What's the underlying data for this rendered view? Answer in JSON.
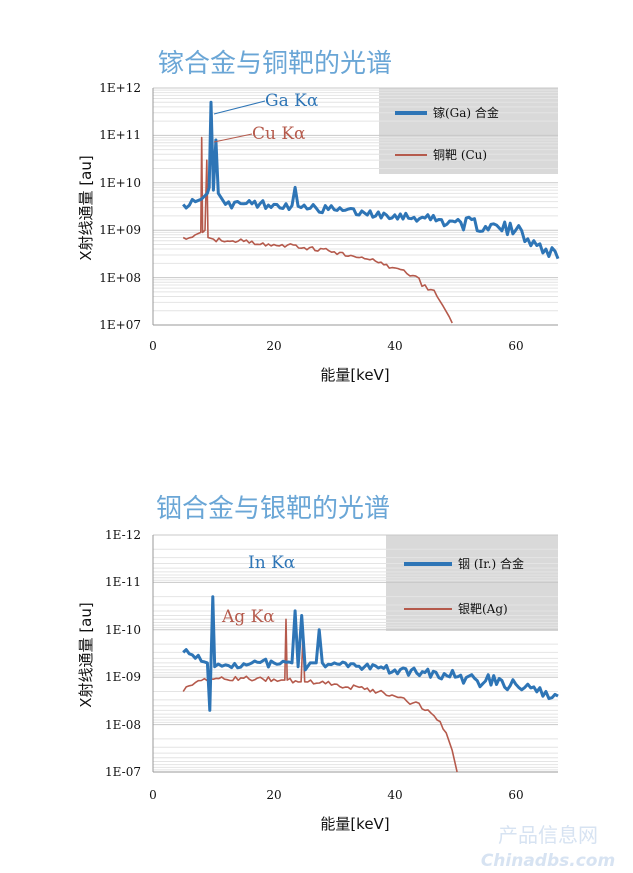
{
  "chart_data": [
    {
      "type": "line",
      "title": "镓合金与铜靶的光谱",
      "xlabel": "能量[keV]",
      "ylabel": "X射线通量 [au]",
      "xlim": [
        0,
        67
      ],
      "ylim": [
        10000000.0,
        1000000000000.0
      ],
      "y_scale": "log",
      "x_ticks": [
        "0",
        "20",
        "40",
        "60"
      ],
      "y_ticks": [
        "1E+07",
        "1E+08",
        "1E+09",
        "1E+10",
        "1E+11",
        "1E+12"
      ],
      "grid": "horizontal",
      "legend_position": "top-right",
      "series": [
        {
          "name": "镓(Ga) 合金",
          "color": "#2e75b6",
          "x": [
            5,
            7,
            8,
            9,
            9.3,
            9.6,
            10,
            10.4,
            10.8,
            12,
            15,
            20,
            23,
            23.5,
            24,
            24.5,
            26,
            30,
            35,
            40,
            45,
            50,
            55,
            60,
            63,
            65,
            67
          ],
          "y": [
            3500000000.0,
            4000000000.0,
            4500000000.0,
            6000000000.0,
            8000000000.0,
            500000000000.0,
            7000000000.0,
            80000000000.0,
            6000000000.0,
            3500000000.0,
            3600000000.0,
            3500000000.0,
            3300000000.0,
            8000000000.0,
            3200000000.0,
            3000000000.0,
            2900000000.0,
            2700000000.0,
            2300000000.0,
            2100000000.0,
            1800000000.0,
            1500000000.0,
            1200000000.0,
            1000000000.0,
            600000000.0,
            400000000.0,
            250000000.0
          ]
        },
        {
          "name": "铜靶 (Cu)",
          "color": "#b55a4c",
          "x": [
            5,
            7,
            7.9,
            8.05,
            8.2,
            8.6,
            8.9,
            9.1,
            10,
            15,
            20,
            25,
            30,
            35,
            40,
            43,
            45,
            47,
            48,
            49,
            49.5
          ],
          "y": [
            700000000.0,
            800000000.0,
            900000000.0,
            90000000000.0,
            900000000.0,
            1000000000.0,
            30000000000.0,
            700000000.0,
            650000000.0,
            580000000.0,
            500000000.0,
            430000000.0,
            350000000.0,
            250000000.0,
            160000000.0,
            110000000.0,
            70000000.0,
            40000000.0,
            25000000.0,
            15000000.0,
            11000000.0
          ]
        }
      ],
      "annotations": [
        "Ga Kα",
        "Cu Kα"
      ]
    },
    {
      "type": "line",
      "title": "铟合金与银靶的光谱",
      "xlabel": "能量[keV]",
      "ylabel": "X射线通量 [au]",
      "xlim": [
        0,
        67
      ],
      "ylim": [
        1e-07,
        1e-12
      ],
      "y_scale": "log",
      "x_ticks": [
        "0",
        "20",
        "40",
        "60"
      ],
      "y_ticks": [
        "1E-07",
        "1E-08",
        "1E-09",
        "1E-10",
        "1E-11",
        "1E-12"
      ],
      "grid": "horizontal",
      "legend_position": "top-right",
      "series": [
        {
          "name": "铟 (Ir.) 合金",
          "color": "#2e75b6",
          "x": [
            5,
            7,
            9,
            9.4,
            9.6,
            9.9,
            10.2,
            12,
            15,
            20,
            23,
            23.5,
            24,
            24.6,
            25.2,
            26,
            27,
            27.5,
            28,
            30,
            35,
            40,
            45,
            50,
            55,
            60,
            63,
            65,
            67
          ],
          "y": [
            3e-10,
            4e-10,
            5e-10,
            5e-09,
            5e-10,
            2e-11,
            6e-10,
            5.5e-10,
            5.2e-10,
            5e-10,
            5e-10,
            4e-11,
            6e-10,
            5e-11,
            7e-10,
            5e-10,
            5e-10,
            1e-10,
            5e-10,
            5e-10,
            6e-10,
            7e-10,
            8e-10,
            1e-09,
            1.2e-09,
            1.4e-09,
            1.6e-09,
            2e-09,
            2.5e-09
          ]
        },
        {
          "name": "银靶(Ag)",
          "color": "#b55a4c",
          "x": [
            5,
            7,
            10,
            15,
            20,
            21.8,
            22,
            22.2,
            24.5,
            24.8,
            25.1,
            30,
            35,
            40,
            43,
            45,
            47,
            48.5,
            49.5,
            50.3
          ],
          "y": [
            2e-09,
            1.3e-09,
            1.1e-09,
            1.05e-09,
            1.1e-09,
            1.15e-09,
            6e-11,
            1.15e-09,
            1.25e-09,
            1.5e-10,
            1.25e-09,
            1.4e-09,
            1.8e-09,
            2.5e-09,
            3.5e-09,
            5e-09,
            8e-09,
            1.5e-08,
            3.5e-08,
            1e-07
          ]
        }
      ],
      "annotations": [
        "In Kα",
        "Ag Kα"
      ]
    }
  ],
  "watermark": {
    "line1": "产品信息网",
    "line2": "Chinadbs.com"
  }
}
